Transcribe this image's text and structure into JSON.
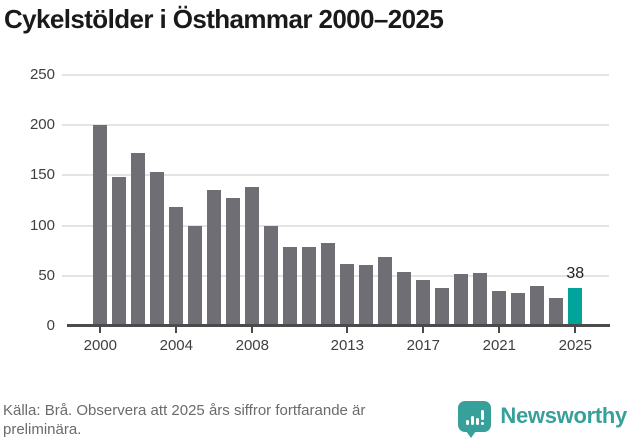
{
  "header": {
    "title": "Cykelstölder i Östhammar 2000–2025"
  },
  "chart_data": {
    "type": "bar",
    "title": "Cykelstölder i Östhammar 2000–2025",
    "xlabel": "",
    "ylabel": "",
    "categories": [
      "2000",
      "2001",
      "2002",
      "2003",
      "2004",
      "2005",
      "2006",
      "2007",
      "2008",
      "2009",
      "2010",
      "2011",
      "2012",
      "2013",
      "2014",
      "2015",
      "2016",
      "2017",
      "2018",
      "2019",
      "2020",
      "2021",
      "2022",
      "2023",
      "2024",
      "2025"
    ],
    "values": [
      200,
      148,
      172,
      153,
      119,
      100,
      135,
      127,
      138,
      100,
      79,
      79,
      83,
      62,
      61,
      69,
      54,
      46,
      38,
      52,
      53,
      35,
      33,
      40,
      28,
      38
    ],
    "ylim": [
      0,
      250
    ],
    "yticks": [
      0,
      50,
      100,
      150,
      200,
      250
    ],
    "xtick_labels": [
      "2000",
      "2004",
      "2008",
      "2013",
      "2017",
      "2021",
      "2025"
    ],
    "grid": true,
    "legend_position": "none",
    "bar_color": "#6f6e74",
    "highlight_color": "#00a49b",
    "highlight_category": "2025",
    "highlight_value_label": "38",
    "gridline_color": "#e4e4e4",
    "axis_color": "#4b4b4b"
  },
  "footer": {
    "source_note": "Källa: Brå. Observera att 2025 års siffror fortfarande är preliminära.",
    "brand_name": "Newsworthy",
    "brand_color": "#38a09b",
    "logo_icon": "bar-chart-speech-bubble-icon"
  }
}
